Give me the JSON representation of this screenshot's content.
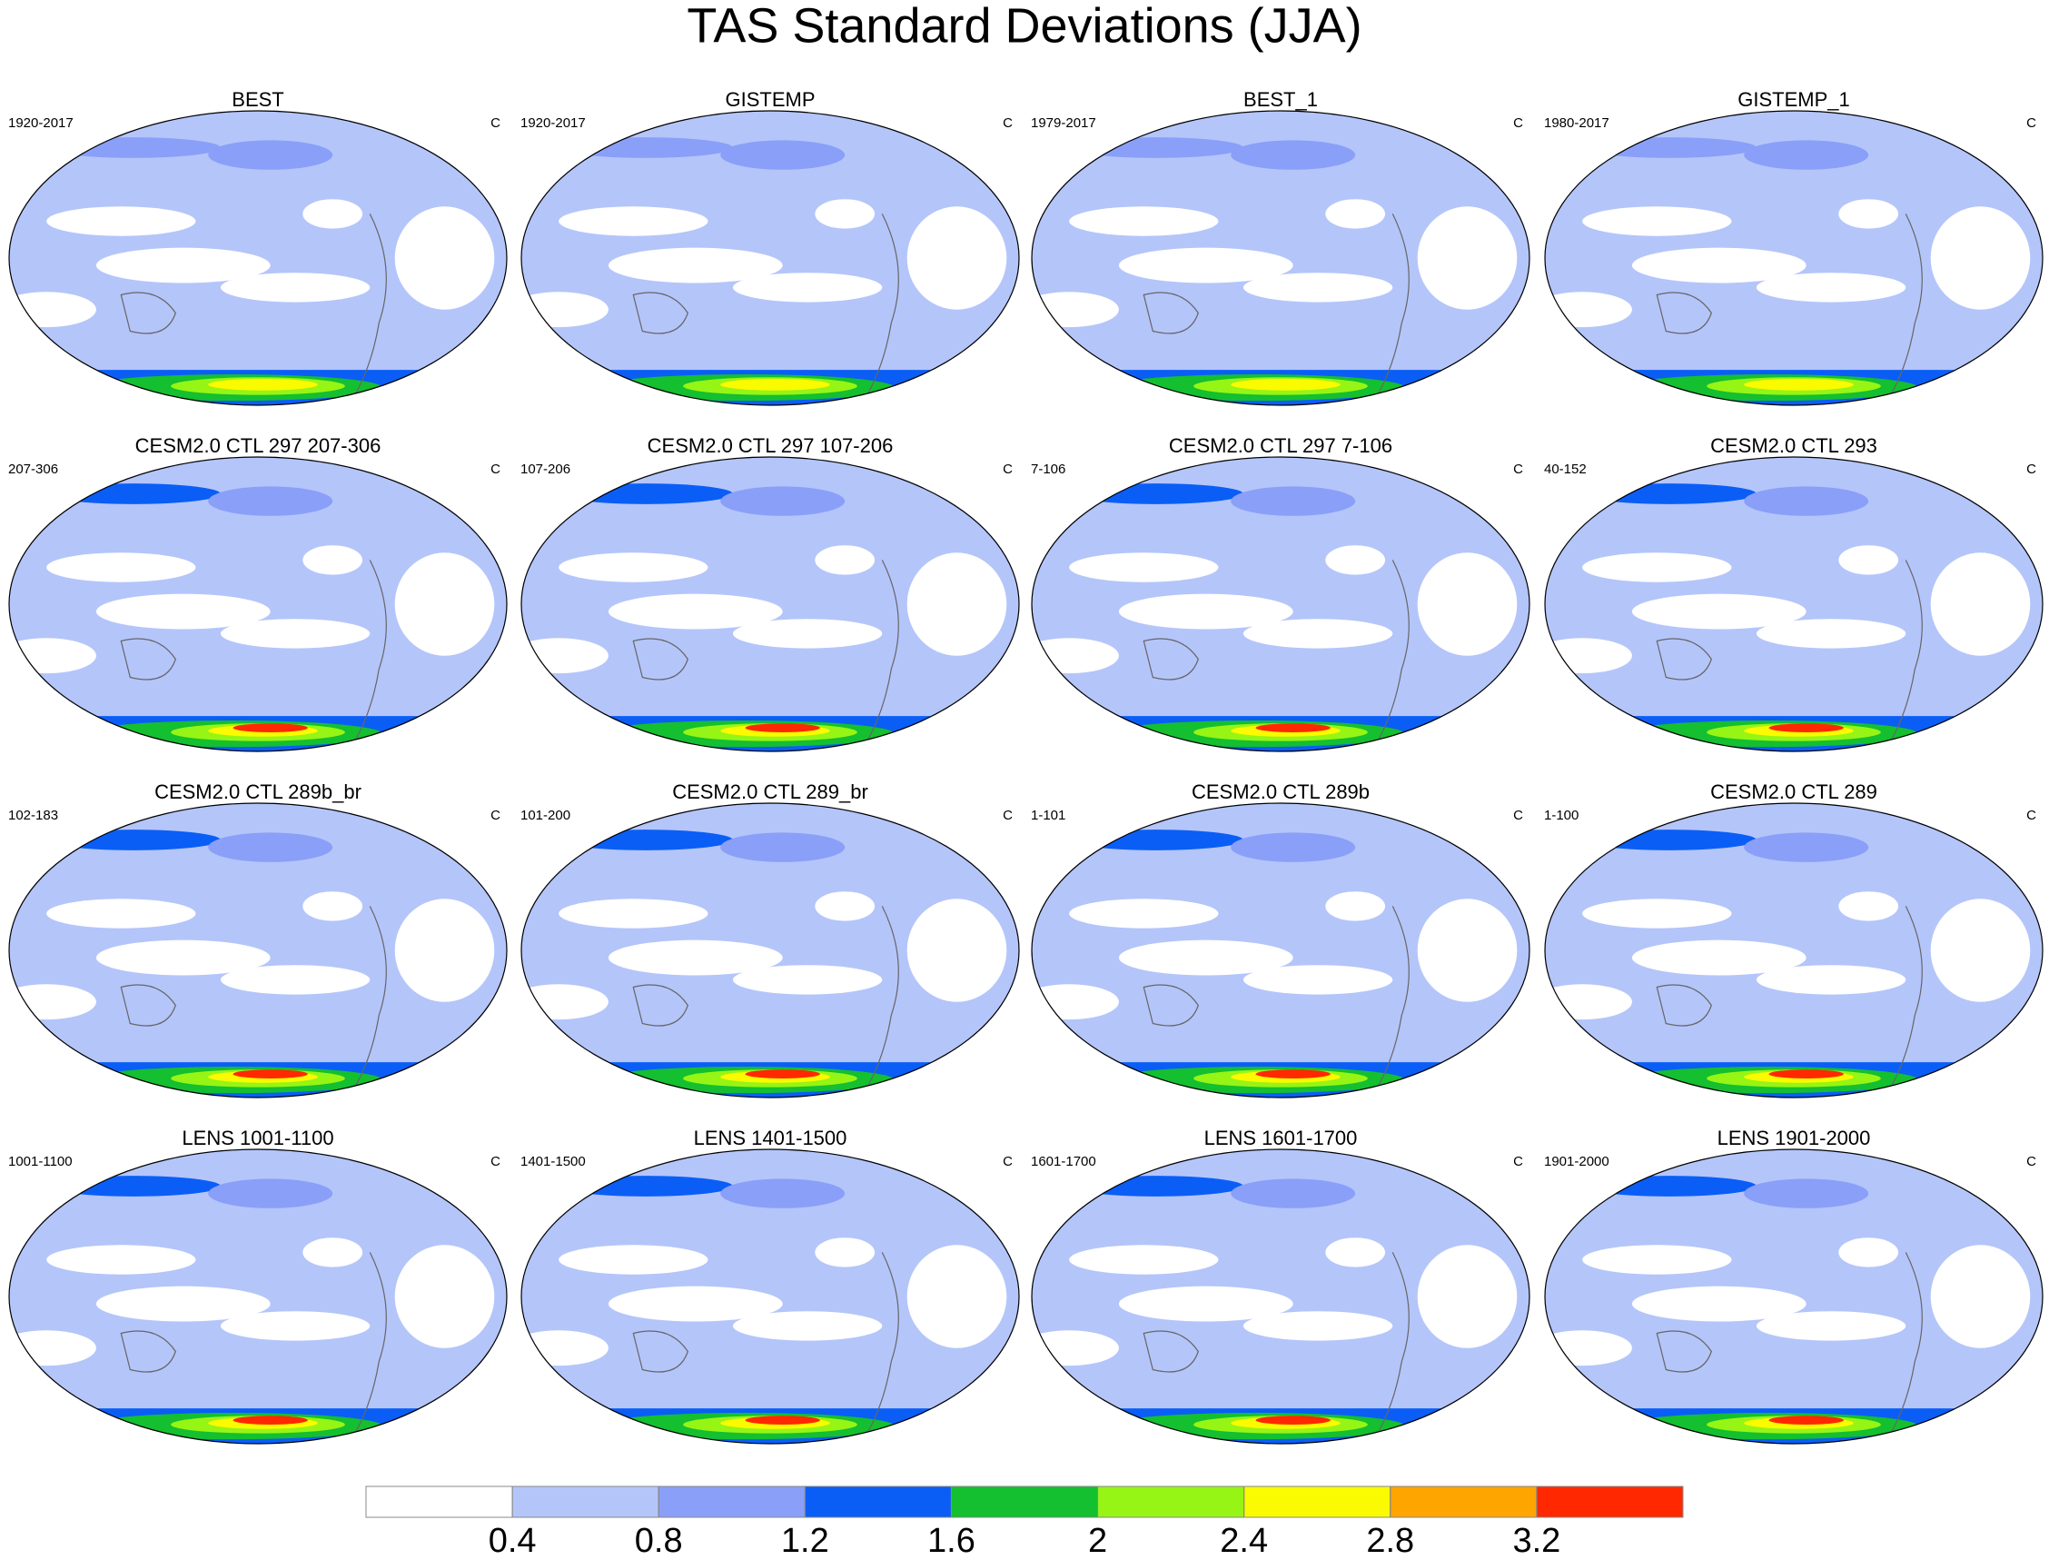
{
  "title": "TAS Standard Deviations (JJA)",
  "panels": [
    {
      "title": "BEST",
      "left": "1920-2017",
      "right": "C"
    },
    {
      "title": "GISTEMP",
      "left": "1920-2017",
      "right": "C"
    },
    {
      "title": "BEST_1",
      "left": "1979-2017",
      "right": "C"
    },
    {
      "title": "GISTEMP_1",
      "left": "1980-2017",
      "right": "C"
    },
    {
      "title": "CESM2.0 CTL 297 207-306",
      "left": "207-306",
      "right": "C"
    },
    {
      "title": "CESM2.0 CTL 297 107-206",
      "left": "107-206",
      "right": "C"
    },
    {
      "title": "CESM2.0 CTL 297 7-106",
      "left": "7-106",
      "right": "C"
    },
    {
      "title": "CESM2.0 CTL 293",
      "left": "40-152",
      "right": "C"
    },
    {
      "title": "CESM2.0 CTL 289b_br",
      "left": "102-183",
      "right": "C"
    },
    {
      "title": "CESM2.0 CTL 289_br",
      "left": "101-200",
      "right": "C"
    },
    {
      "title": "CESM2.0 CTL 289b",
      "left": "1-101",
      "right": "C"
    },
    {
      "title": "CESM2.0 CTL 289",
      "left": "1-100",
      "right": "C"
    },
    {
      "title": "LENS 1001-1100",
      "left": "1001-1100",
      "right": "C"
    },
    {
      "title": "LENS 1401-1500",
      "left": "1401-1500",
      "right": "C"
    },
    {
      "title": "LENS 1601-1700",
      "left": "1601-1700",
      "right": "C"
    },
    {
      "title": "LENS 1901-2000",
      "left": "1901-2000",
      "right": "C"
    }
  ],
  "colorbar": {
    "colors": [
      "#ffffff",
      "#b4c5fa",
      "#8a9ff8",
      "#0a5ef5",
      "#14bf30",
      "#96f514",
      "#fafa00",
      "#ffa500",
      "#ff2800"
    ],
    "ticks": [
      0.4,
      0.8,
      1.2,
      1.6,
      2,
      2.4,
      2.8,
      3.2
    ]
  }
}
